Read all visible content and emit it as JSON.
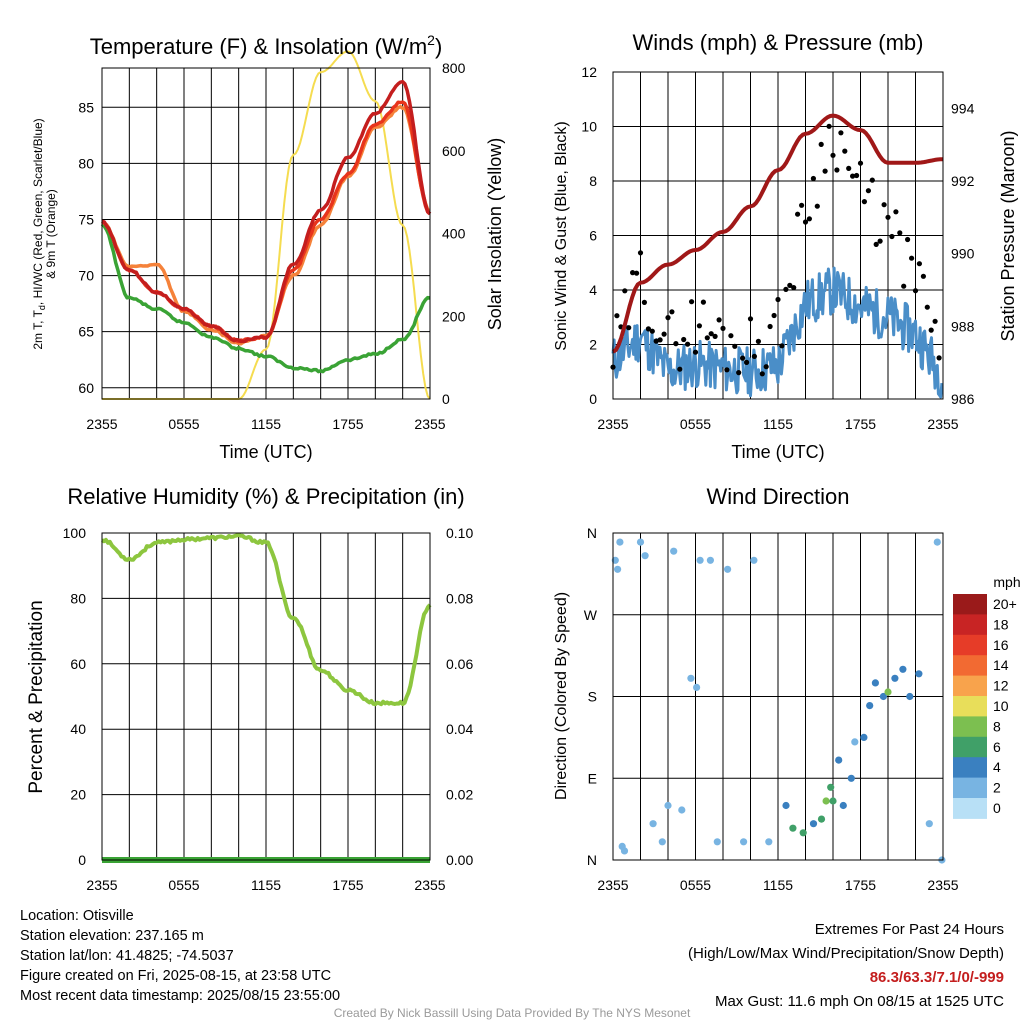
{
  "colors": {
    "air_temp": "#c41e1e",
    "dewpoint": "#3aa335",
    "heat_index": "#e8341c",
    "temp_9m": "#f5823a",
    "solar": "#f5dc50",
    "wind": "#4a8ec8",
    "gust": "#000000",
    "pressure": "#a01818",
    "rh": "#8dc63f",
    "precip": "#3aa335",
    "extremes": "#c41e1e"
  },
  "x_ticks": [
    "2355",
    "0555",
    "1155",
    "1755",
    "2355"
  ],
  "panels": {
    "temperature": {
      "title": "Temperature (F) & Insolation (W/m",
      "title_sup": "2",
      "title_end": ")",
      "xlabel": "Time (UTC)",
      "ylabel_line1": "2m T, T",
      "ylabel_sub": "d",
      "ylabel_line1_end": ", HI/WC (Red, Green, Scarlet/Blue)",
      "ylabel_line2": "& 9m T (Orange)",
      "y2label": "Solar Insolation (Yellow)",
      "yticks": [
        "60",
        "65",
        "70",
        "75",
        "80",
        "85"
      ],
      "y2ticks": [
        "0",
        "200",
        "400",
        "600",
        "800"
      ]
    },
    "winds": {
      "title": "Winds (mph) & Pressure (mb)",
      "xlabel": "Time (UTC)",
      "ylabel": "Sonic Wind & Gust (Blue, Black)",
      "y2label": "Station Pressure (Maroon)",
      "yticks": [
        "0",
        "2",
        "4",
        "6",
        "8",
        "10",
        "12"
      ],
      "y2ticks": [
        "986",
        "988",
        "990",
        "992",
        "994"
      ]
    },
    "humidity": {
      "title": "Relative Humidity (%) & Precipitation (in)",
      "ylabel": "Percent & Precipitation",
      "yticks": [
        "0",
        "20",
        "40",
        "60",
        "80",
        "100"
      ],
      "y2ticks": [
        "0.00",
        "0.02",
        "0.04",
        "0.06",
        "0.08",
        "0.10"
      ]
    },
    "direction": {
      "title": "Wind Direction",
      "ylabel": "Direction (Colored By Speed)",
      "yticks": [
        "N",
        "E",
        "S",
        "W",
        "N"
      ],
      "legend_title": "mph",
      "legend_labels": [
        "20+",
        "18",
        "16",
        "14",
        "12",
        "10",
        "8",
        "6",
        "4",
        "2",
        "0"
      ],
      "legend_colors": [
        "#9a1a1a",
        "#c82424",
        "#e63c28",
        "#f26a32",
        "#f8a34c",
        "#e8de5a",
        "#7cbf50",
        "#40a068",
        "#3a80c0",
        "#78b4e2",
        "#b8e0f6"
      ]
    }
  },
  "chart_data": [
    {
      "type": "line",
      "title": "Temperature (F) & Insolation (W/m2)",
      "xlabel": "Time (UTC)",
      "ylabel": "2m T, Td, HI/WC (Red, Green, Scarlet/Blue) & 9m T (Orange)",
      "y2label": "Solar Insolation (Yellow)",
      "x": [
        "2355",
        "0155",
        "0355",
        "0555",
        "0755",
        "0955",
        "1155",
        "1355",
        "1555",
        "1755",
        "1955",
        "2155",
        "2355"
      ],
      "ylim": [
        59,
        88.5
      ],
      "y2lim": [
        0,
        800
      ],
      "series": [
        {
          "name": "2m T (Red)",
          "axis": "left",
          "values": [
            74.8,
            70.5,
            68.5,
            67,
            65.5,
            64.2,
            64.5,
            71,
            75.8,
            80.5,
            84.5,
            87.2,
            75.5
          ]
        },
        {
          "name": "Td (Green)",
          "axis": "left",
          "values": [
            74.5,
            68,
            67,
            65.8,
            64.5,
            63.5,
            62.8,
            61.8,
            61.5,
            62.5,
            63,
            64.3,
            68
          ]
        },
        {
          "name": "HI/WC (Scarlet)",
          "axis": "left",
          "values": [
            74.8,
            70.5,
            68.5,
            67,
            65.5,
            64.2,
            64.5,
            70.5,
            75,
            79,
            83.5,
            85.5,
            75.5
          ]
        },
        {
          "name": "9m T (Orange)",
          "axis": "left",
          "values": [
            74.8,
            70.8,
            71,
            66.8,
            65.2,
            64,
            64.6,
            70,
            74.5,
            78.8,
            83.2,
            85,
            75.8
          ]
        },
        {
          "name": "Solar Insolation (Yellow)",
          "axis": "right",
          "values": [
            0,
            0,
            0,
            0,
            0,
            0,
            120,
            590,
            790,
            840,
            720,
            420,
            0
          ]
        }
      ]
    },
    {
      "type": "line",
      "title": "Winds (mph) & Pressure (mb)",
      "xlabel": "Time (UTC)",
      "ylabel": "Sonic Wind & Gust (Blue, Black)",
      "y2label": "Station Pressure (Maroon)",
      "x": [
        "2355",
        "0155",
        "0355",
        "0555",
        "0755",
        "0955",
        "1155",
        "1355",
        "1555",
        "1755",
        "1955",
        "2155",
        "2355"
      ],
      "ylim": [
        0,
        12
      ],
      "y2lim": [
        986,
        995
      ],
      "series": [
        {
          "name": "Sonic Wind (Blue)",
          "axis": "left",
          "values": [
            1.4,
            2.3,
            1.0,
            1.3,
            1.1,
            1.0,
            1.2,
            3.5,
            4.0,
            3.4,
            3.0,
            2.4,
            0.8
          ]
        },
        {
          "name": "Gust (Black)",
          "axis": "left",
          "values": [
            1.5,
            4.5,
            2.0,
            2.8,
            2.2,
            1.9,
            2.5,
            7.0,
            10.0,
            7.5,
            6.2,
            4.5,
            1.3
          ]
        },
        {
          "name": "Station Pressure (Maroon)",
          "axis": "right",
          "values": [
            987.3,
            989.2,
            989.7,
            990.1,
            990.6,
            991.3,
            992.3,
            993.3,
            993.8,
            993.4,
            992.5,
            992.5,
            992.6
          ]
        }
      ]
    },
    {
      "type": "line",
      "title": "Relative Humidity (%) & Precipitation (in)",
      "ylabel": "Percent & Precipitation",
      "x": [
        "2355",
        "0155",
        "0355",
        "0555",
        "0755",
        "0955",
        "1155",
        "1355",
        "1555",
        "1755",
        "1955",
        "2155",
        "2355"
      ],
      "ylim": [
        0,
        100
      ],
      "y2lim": [
        0,
        0.1
      ],
      "series": [
        {
          "name": "Relative Humidity",
          "axis": "left",
          "values": [
            98,
            92,
            97,
            98,
            98.5,
            99,
            97,
            74,
            58,
            52,
            48,
            48,
            78
          ]
        },
        {
          "name": "Precipitation",
          "axis": "right",
          "values": [
            0,
            0,
            0,
            0,
            0,
            0,
            0,
            0,
            0,
            0,
            0,
            0,
            0
          ]
        }
      ]
    },
    {
      "type": "scatter",
      "title": "Wind Direction",
      "ylabel": "Direction (Colored By Speed)",
      "y_categories": [
        "N",
        "E",
        "S",
        "W",
        "N"
      ],
      "ylim": [
        0,
        360
      ],
      "color_scale_mph": [
        0,
        2,
        4,
        6,
        8,
        10,
        12,
        14,
        16,
        18,
        20
      ],
      "points": [
        {
          "x": "0005",
          "dir": 330,
          "mph": 1
        },
        {
          "x": "0015",
          "dir": 320,
          "mph": 1
        },
        {
          "x": "0025",
          "dir": 350,
          "mph": 2
        },
        {
          "x": "0035",
          "dir": 15,
          "mph": 2
        },
        {
          "x": "0045",
          "dir": 10,
          "mph": 1
        },
        {
          "x": "0155",
          "dir": 350,
          "mph": 2
        },
        {
          "x": "0215",
          "dir": 335,
          "mph": 1
        },
        {
          "x": "0250",
          "dir": 40,
          "mph": 1
        },
        {
          "x": "0330",
          "dir": 20,
          "mph": 1
        },
        {
          "x": "0355",
          "dir": 60,
          "mph": 1
        },
        {
          "x": "0420",
          "dir": 340,
          "mph": 1
        },
        {
          "x": "0455",
          "dir": 55,
          "mph": 2
        },
        {
          "x": "0535",
          "dir": 200,
          "mph": 1
        },
        {
          "x": "0600",
          "dir": 190,
          "mph": 1
        },
        {
          "x": "0615",
          "dir": 330,
          "mph": 1
        },
        {
          "x": "0700",
          "dir": 330,
          "mph": 1
        },
        {
          "x": "0730",
          "dir": 20,
          "mph": 1
        },
        {
          "x": "0815",
          "dir": 320,
          "mph": 1
        },
        {
          "x": "0925",
          "dir": 20,
          "mph": 1
        },
        {
          "x": "1010",
          "dir": 330,
          "mph": 1
        },
        {
          "x": "1115",
          "dir": 20,
          "mph": 2
        },
        {
          "x": "1230",
          "dir": 60,
          "mph": 4
        },
        {
          "x": "1300",
          "dir": 35,
          "mph": 5
        },
        {
          "x": "1345",
          "dir": 30,
          "mph": 6
        },
        {
          "x": "1430",
          "dir": 40,
          "mph": 4
        },
        {
          "x": "1505",
          "dir": 45,
          "mph": 5
        },
        {
          "x": "1525",
          "dir": 65,
          "mph": 7
        },
        {
          "x": "1545",
          "dir": 80,
          "mph": 6
        },
        {
          "x": "1555",
          "dir": 65,
          "mph": 5
        },
        {
          "x": "1620",
          "dir": 110,
          "mph": 4
        },
        {
          "x": "1640",
          "dir": 60,
          "mph": 4
        },
        {
          "x": "1715",
          "dir": 90,
          "mph": 4
        },
        {
          "x": "1730",
          "dir": 130,
          "mph": 2
        },
        {
          "x": "1810",
          "dir": 135,
          "mph": 3
        },
        {
          "x": "1835",
          "dir": 170,
          "mph": 4
        },
        {
          "x": "1900",
          "dir": 195,
          "mph": 4
        },
        {
          "x": "1935",
          "dir": 180,
          "mph": 4
        },
        {
          "x": "1955",
          "dir": 185,
          "mph": 7
        },
        {
          "x": "2025",
          "dir": 200,
          "mph": 4
        },
        {
          "x": "2100",
          "dir": 210,
          "mph": 4
        },
        {
          "x": "2130",
          "dir": 180,
          "mph": 4
        },
        {
          "x": "2210",
          "dir": 205,
          "mph": 3
        },
        {
          "x": "2255",
          "dir": 40,
          "mph": 1
        },
        {
          "x": "2330",
          "dir": 350,
          "mph": 1
        },
        {
          "x": "2350",
          "dir": 0,
          "mph": 2
        }
      ]
    }
  ],
  "info": {
    "location": "Location: Otisville",
    "elevation": "Station elevation: 237.165 m",
    "latlon": "Station lat/lon: 41.4825; -74.5037",
    "created": "Figure created on Fri, 2025-08-15, at 23:58 UTC",
    "recent": "Most recent data timestamp: 2025/08/15 23:55:00"
  },
  "extremes": {
    "title": "Extremes For Past 24 Hours",
    "subtitle": "(High/Low/Max Wind/Precipitation/Snow Depth)",
    "values": "86.3/63.3/7.1/0/-999",
    "max_gust": "Max Gust: 11.6 mph On 08/15 at 1525 UTC"
  },
  "credit": "Created By Nick Bassill Using Data Provided By The NYS Mesonet"
}
